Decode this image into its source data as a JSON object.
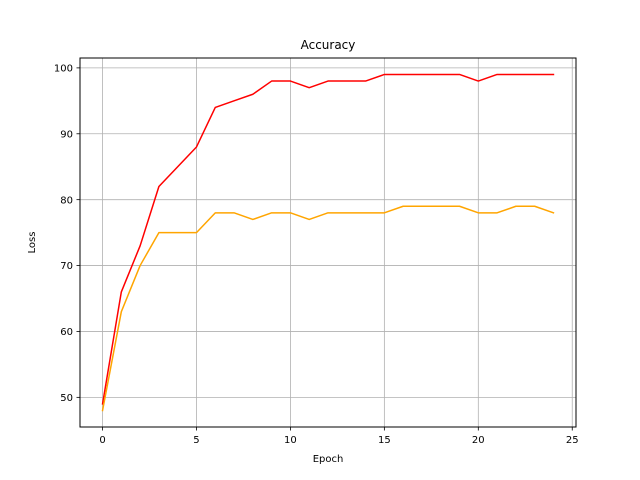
{
  "chart_data": {
    "type": "line",
    "title": "Accuracy",
    "xlabel": "Epoch",
    "ylabel": "Loss",
    "xlim": [
      -1.2,
      25.2
    ],
    "ylim": [
      45.5,
      101.5
    ],
    "xticks": [
      0,
      5,
      10,
      15,
      20,
      25
    ],
    "yticks": [
      50,
      60,
      70,
      80,
      90,
      100
    ],
    "grid": true,
    "legend": "none",
    "x": [
      0,
      1,
      2,
      3,
      4,
      5,
      6,
      7,
      8,
      9,
      10,
      11,
      12,
      13,
      14,
      15,
      16,
      17,
      18,
      19,
      20,
      21,
      22,
      23,
      24
    ],
    "series": [
      {
        "color": "#ff0000",
        "values": [
          49,
          66,
          73,
          82,
          85,
          88,
          94,
          95,
          96,
          98,
          98,
          97,
          98,
          98,
          98,
          99,
          99,
          99,
          99,
          99,
          98,
          99,
          99,
          99,
          99
        ]
      },
      {
        "color": "#ffa500",
        "values": [
          48,
          63,
          70,
          75,
          75,
          75,
          78,
          78,
          77,
          78,
          78,
          77,
          78,
          78,
          78,
          78,
          79,
          79,
          79,
          79,
          78,
          78,
          79,
          79,
          78
        ]
      }
    ]
  }
}
